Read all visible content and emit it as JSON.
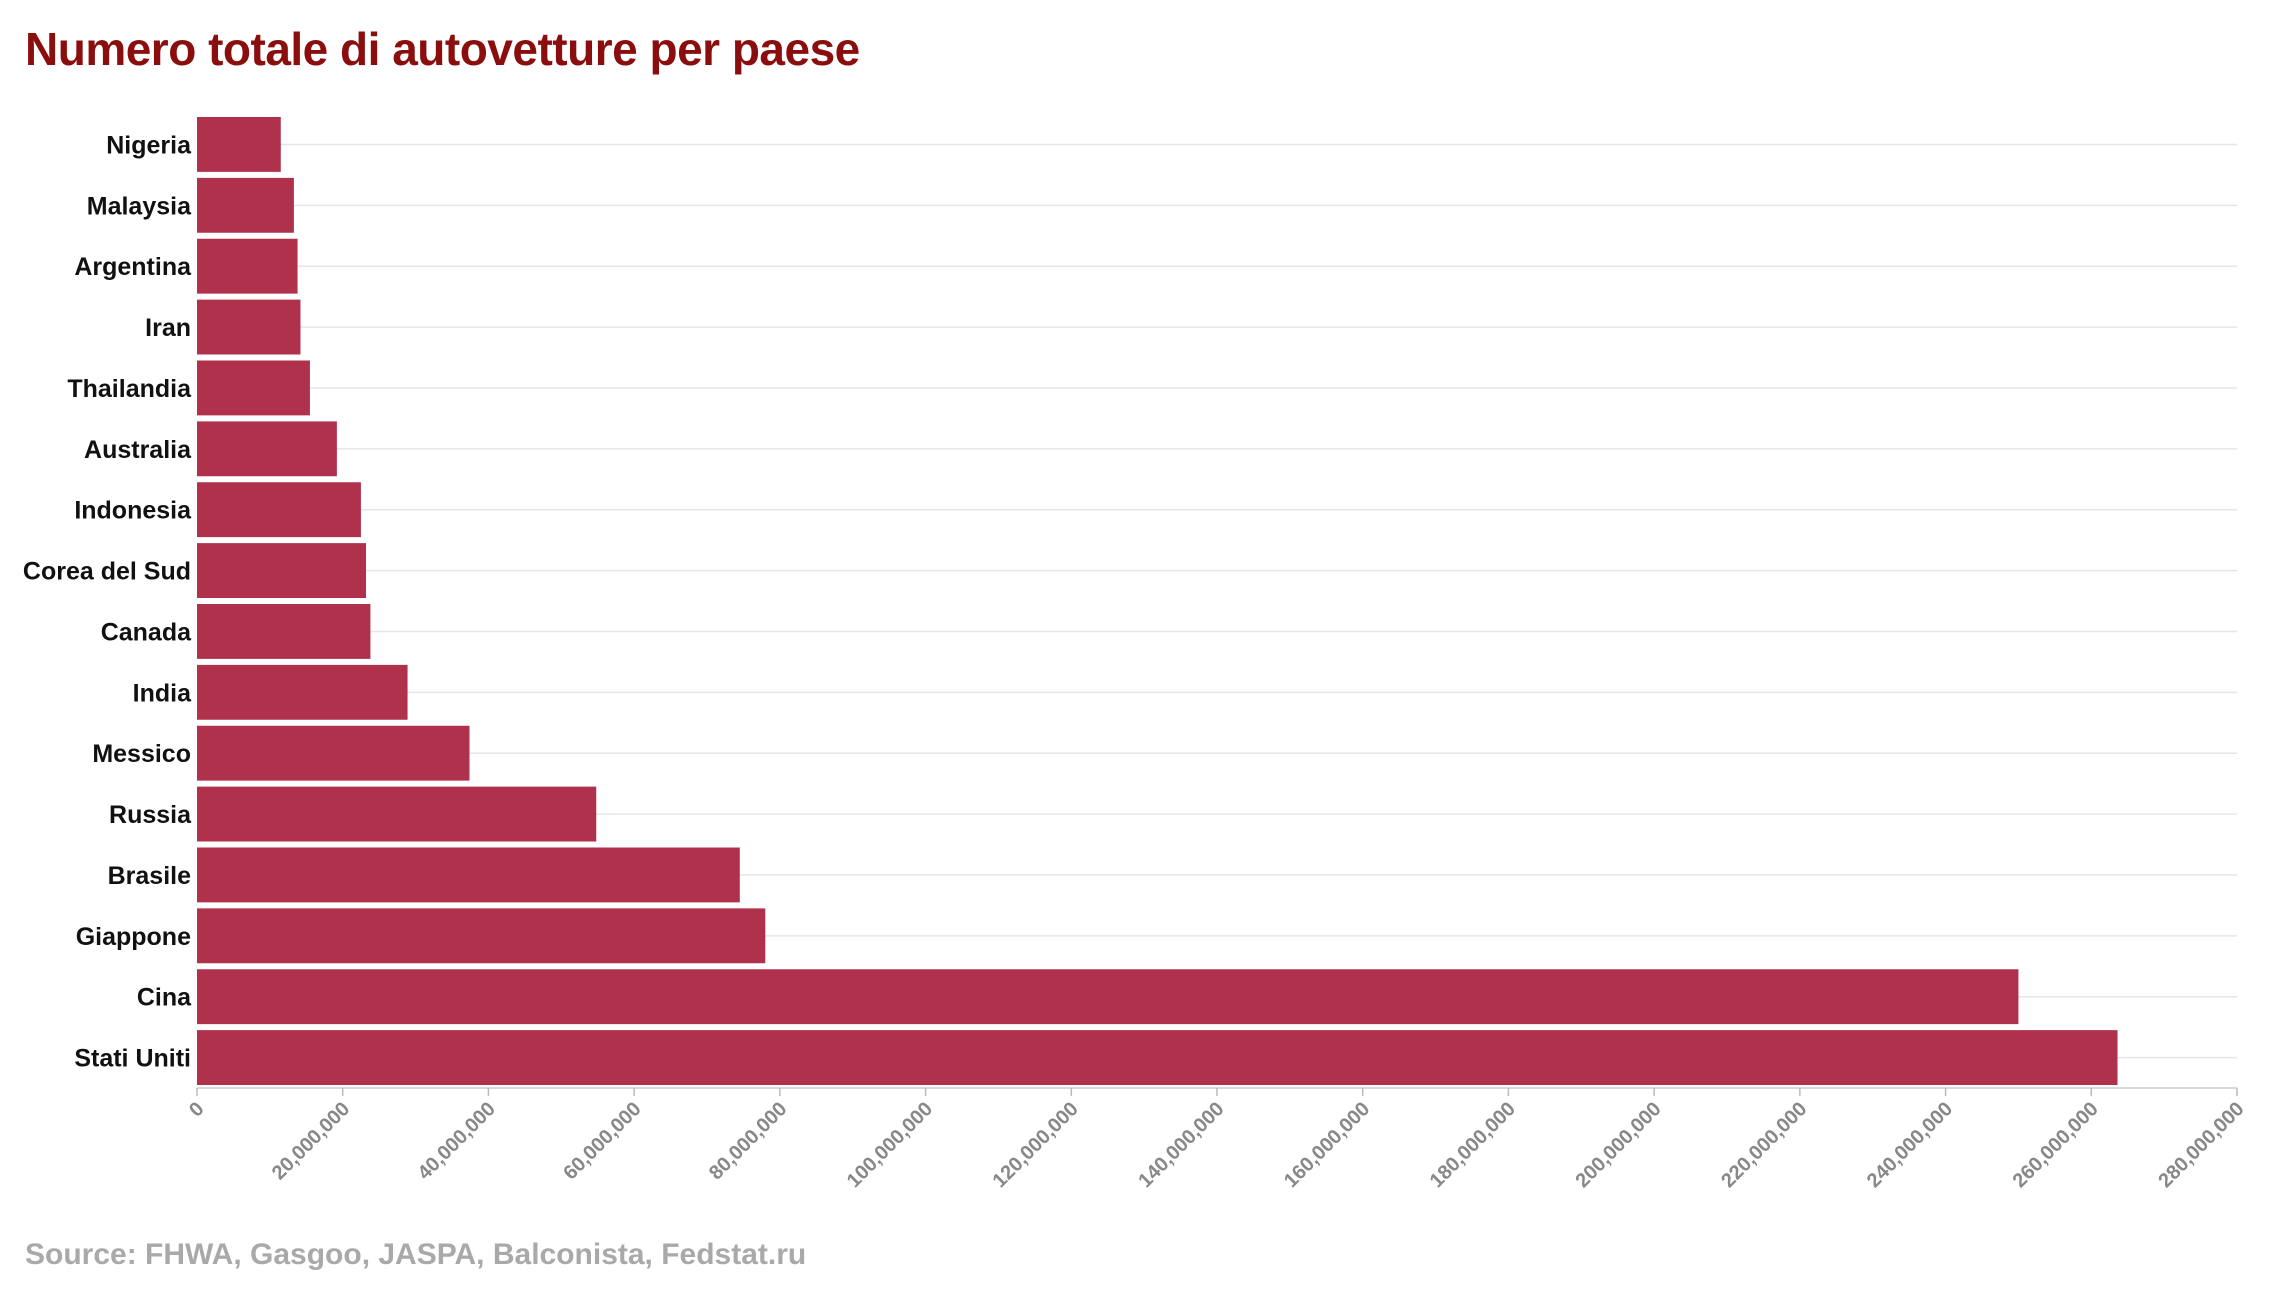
{
  "chart_data": {
    "type": "bar",
    "orientation": "horizontal",
    "title": "Numero totale di autovetture per paese",
    "source": "Source: FHWA, Gasgoo, JASPA, Balconista, Fedstat.ru",
    "categories": [
      "Nigeria",
      "Malaysia",
      "Argentina",
      "Iran",
      "Thailandia",
      "Australia",
      "Indonesia",
      "Corea del Sud",
      "Canada",
      "India",
      "Messico",
      "Russia",
      "Brasile",
      "Giappone",
      "Cina",
      "Stati Uniti"
    ],
    "values": [
      11500000,
      13300000,
      13800000,
      14200000,
      15500000,
      19200000,
      22500000,
      23200000,
      23800000,
      28900000,
      37400000,
      54800000,
      74500000,
      78000000,
      250000000,
      263600000
    ],
    "xlim": [
      0,
      280000000
    ],
    "x_ticks": [
      0,
      20000000,
      40000000,
      60000000,
      80000000,
      100000000,
      120000000,
      140000000,
      160000000,
      180000000,
      200000000,
      220000000,
      240000000,
      260000000,
      280000000
    ],
    "x_tick_labels": [
      "0",
      "20,000,000",
      "40,000,000",
      "60,000,000",
      "80,000,000",
      "100,000,000",
      "120,000,000",
      "140,000,000",
      "160,000,000",
      "180,000,000",
      "200,000,000",
      "220,000,000",
      "240,000,000",
      "260,000,000",
      "280,000,000"
    ],
    "bar_color": "#b0314b",
    "grid": true
  }
}
